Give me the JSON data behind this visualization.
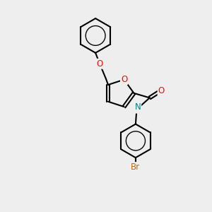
{
  "bg_color": "#eeeeee",
  "bond_color": "#000000",
  "bond_width": 1.5,
  "atom_colors": {
    "O": "#ff0000",
    "N": "#008080",
    "Br": "#cc6600",
    "C": "#000000"
  },
  "font_size": 8.5,
  "fig_size": [
    3.0,
    3.0
  ],
  "dpi": 100
}
